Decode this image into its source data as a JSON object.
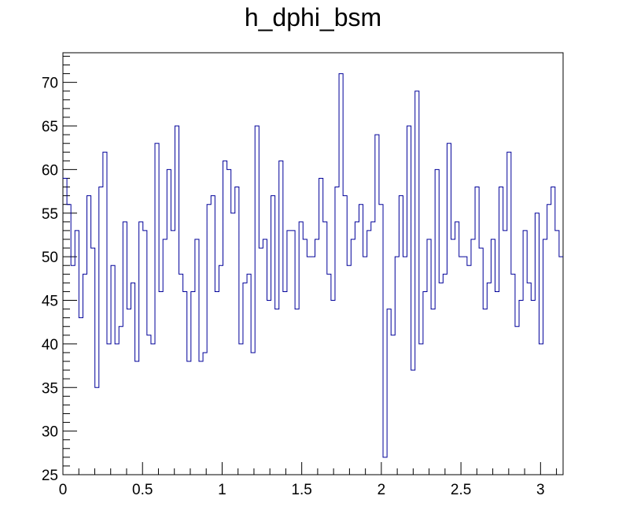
{
  "chart_data": {
    "type": "histogram",
    "title": "h_dphi_bsm",
    "xlim": [
      0,
      3.1416
    ],
    "ylim": [
      25,
      73.4
    ],
    "xticks": [
      0,
      0.5,
      1,
      1.5,
      2,
      2.5,
      3
    ],
    "xtick_labels": [
      "0",
      "0.5",
      "1",
      "1.5",
      "2",
      "2.5",
      "3"
    ],
    "yticks": [
      25,
      30,
      35,
      40,
      45,
      50,
      55,
      60,
      65,
      70
    ],
    "ytick_labels": [
      "25",
      "30",
      "35",
      "40",
      "45",
      "50",
      "55",
      "60",
      "65",
      "70"
    ],
    "line_color": "#000099",
    "grid": false,
    "legend": "none",
    "bins": 125,
    "values": [
      59,
      56,
      49,
      53,
      43,
      48,
      57,
      51,
      35,
      58,
      62,
      40,
      49,
      40,
      42,
      54,
      44,
      47,
      38,
      54,
      53,
      41,
      40,
      63,
      46,
      52,
      60,
      53,
      65,
      48,
      46,
      38,
      46,
      52,
      38,
      39,
      56,
      57,
      46,
      49,
      61,
      60,
      55,
      58,
      40,
      47,
      48,
      39,
      65,
      51,
      52,
      45,
      57,
      44,
      61,
      46,
      53,
      53,
      44,
      54,
      52,
      50,
      50,
      52,
      59,
      54,
      48,
      45,
      58,
      71,
      57,
      49,
      52,
      54,
      56,
      50,
      53,
      54,
      64,
      56,
      27,
      44,
      41,
      50,
      57,
      50,
      65,
      37,
      69,
      40,
      46,
      52,
      44,
      60,
      47,
      48,
      63,
      52,
      54,
      50,
      50,
      49,
      52,
      58,
      51,
      44,
      47,
      52,
      46,
      58,
      53,
      62,
      48,
      42,
      45,
      53,
      47,
      45,
      55,
      40,
      52,
      56,
      58,
      53,
      50
    ]
  }
}
